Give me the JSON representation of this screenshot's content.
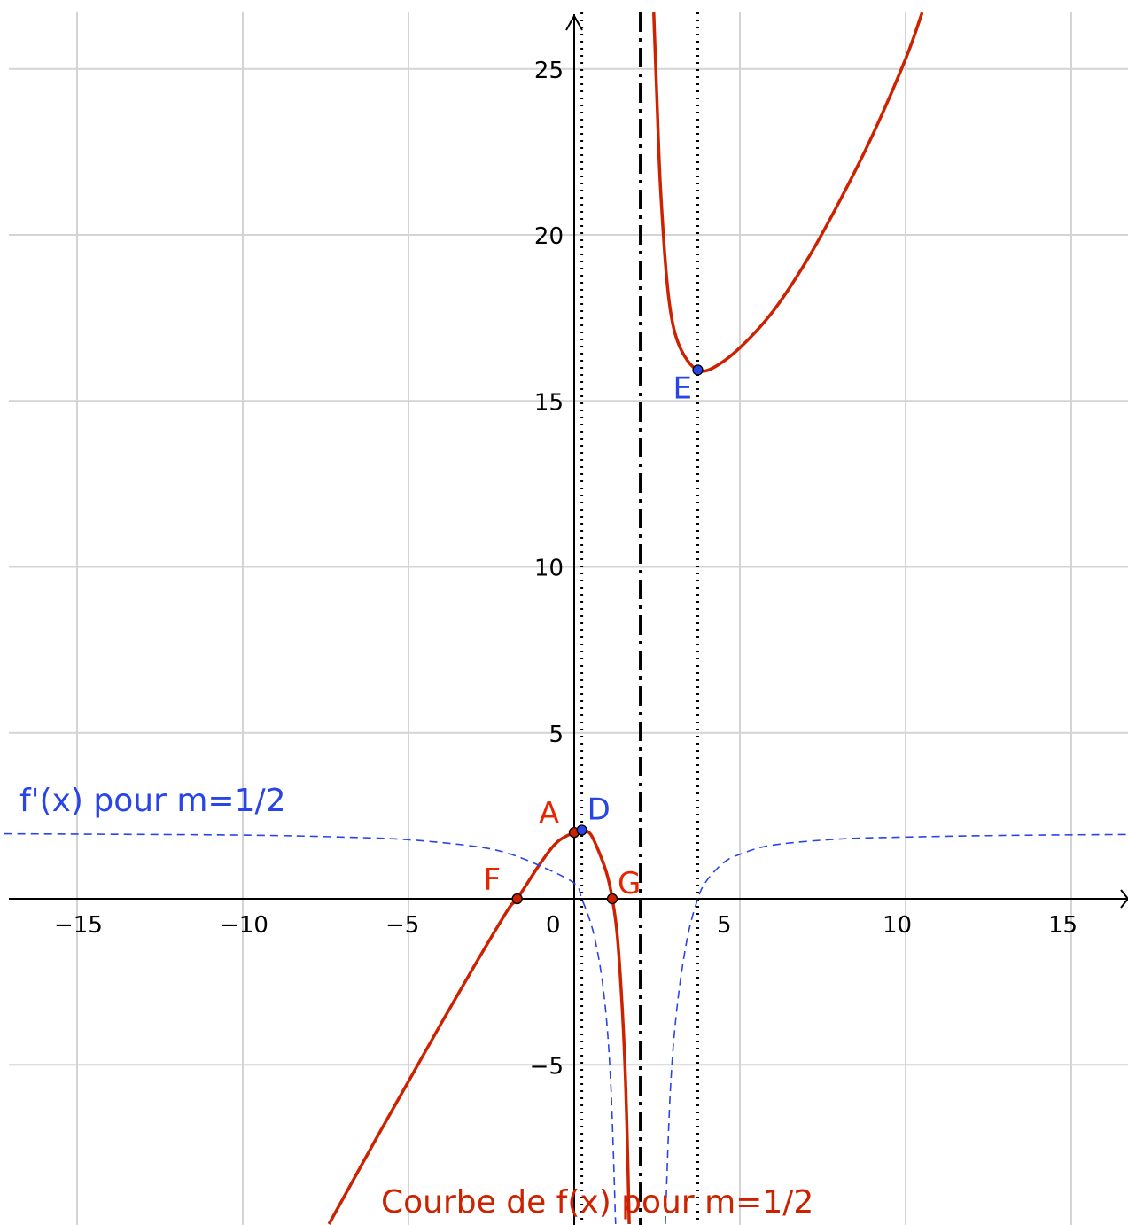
{
  "chart_data": {
    "type": "line",
    "title": "",
    "xlabel": "",
    "ylabel": "",
    "xlim": [
      -17.2,
      16.8
    ],
    "ylim": [
      -9.8,
      26.7
    ],
    "grid": true,
    "x_ticks": [
      "−15",
      "−10",
      "−5",
      "0",
      "5",
      "10",
      "15"
    ],
    "y_ticks": [
      "25",
      "20",
      "15",
      "10",
      "5",
      "−5"
    ],
    "colors": {
      "f": "#cc2200",
      "fprime": "#2a45e6",
      "grid": "#d4d4d4",
      "axis": "#000000"
    },
    "asymptote_x": 2,
    "dotted_lines_x": [
      0.23,
      3.73
    ],
    "series": [
      {
        "name": "Courbe de f(x) pour m=1/2",
        "color": "#cc2200",
        "style": "solid",
        "domain": [
          -7.4,
          1.66
        ],
        "points": [
          [
            -7.4,
            -9.8
          ],
          [
            -6,
            -7.27
          ],
          [
            -5,
            -5.5
          ],
          [
            -4,
            -3.73
          ],
          [
            -3,
            -2.0
          ],
          [
            -2,
            -0.33
          ],
          [
            -1.72,
            0
          ],
          [
            -1,
            1.1
          ],
          [
            -0.5,
            1.72
          ],
          [
            0,
            2
          ],
          [
            0.23,
            2.07
          ],
          [
            0.5,
            1.94
          ],
          [
            0.8,
            1.28
          ],
          [
            1.0,
            0.7
          ],
          [
            1.15,
            0
          ],
          [
            1.3,
            -1.1
          ],
          [
            1.45,
            -3.3
          ],
          [
            1.55,
            -5.5
          ],
          [
            1.62,
            -8.0
          ],
          [
            1.66,
            -9.8
          ]
        ]
      },
      {
        "name": "",
        "color": "#cc2200",
        "style": "solid",
        "domain": [
          2.4,
          10.5
        ],
        "points": [
          [
            2.4,
            26.7
          ],
          [
            2.5,
            24.0
          ],
          [
            2.6,
            21.5
          ],
          [
            2.8,
            18.6
          ],
          [
            3.0,
            17.2
          ],
          [
            3.3,
            16.4
          ],
          [
            3.73,
            15.93
          ],
          [
            4.2,
            16.0
          ],
          [
            5,
            16.6
          ],
          [
            6,
            17.7
          ],
          [
            7,
            19.2
          ],
          [
            8,
            21.0
          ],
          [
            9,
            23.0
          ],
          [
            10,
            25.3
          ],
          [
            10.5,
            26.7
          ]
        ]
      },
      {
        "name": "f'(x) pour m=1/2",
        "color": "#2a45e6",
        "style": "dashed",
        "domain": [
          -17.2,
          16.8
        ],
        "points": [
          [
            -17.2,
            1.96
          ],
          [
            -15,
            1.95
          ],
          [
            -10,
            1.92
          ],
          [
            -7,
            1.86
          ],
          [
            -5,
            1.78
          ],
          [
            -3,
            1.58
          ],
          [
            -2,
            1.37
          ],
          [
            -1,
            0.98
          ],
          [
            0,
            0.47
          ],
          [
            0.23,
            0
          ],
          [
            0.6,
            -1.1
          ],
          [
            0.9,
            -2.9
          ],
          [
            1.1,
            -5.5
          ],
          [
            1.25,
            -9.8
          ]
        ]
      },
      {
        "name": "",
        "color": "#2a45e6",
        "style": "dashed",
        "domain": [
          2.75,
          16.8
        ],
        "points": [
          [
            2.75,
            -9.8
          ],
          [
            2.9,
            -5.8
          ],
          [
            3.1,
            -3.3
          ],
          [
            3.4,
            -1.25
          ],
          [
            3.73,
            0
          ],
          [
            4.0,
            0.55
          ],
          [
            4.5,
            1.08
          ],
          [
            5,
            1.34
          ],
          [
            6,
            1.62
          ],
          [
            8,
            1.8
          ],
          [
            10,
            1.86
          ],
          [
            13,
            1.91
          ],
          [
            16.8,
            1.94
          ]
        ]
      }
    ],
    "points": [
      {
        "label": "A",
        "x": 0,
        "y": 2,
        "color": "#cc2200",
        "label_color": "#e62600"
      },
      {
        "label": "D",
        "x": 0.23,
        "y": 2.07,
        "color": "#2a45e6",
        "label_color": "#2a45e6"
      },
      {
        "label": "E",
        "x": 3.73,
        "y": 15.93,
        "color": "#2a45e6",
        "label_color": "#2a45e6"
      },
      {
        "label": "F",
        "x": -1.72,
        "y": 0,
        "color": "#cc2200",
        "label_color": "#e62600"
      },
      {
        "label": "G",
        "x": 1.15,
        "y": 0,
        "color": "#cc2200",
        "label_color": "#e62600"
      }
    ],
    "annotations": {
      "fprime_label": "f'(x) pour m=1/2",
      "f_label": "Courbe de f(x) pour m=1/2"
    }
  }
}
